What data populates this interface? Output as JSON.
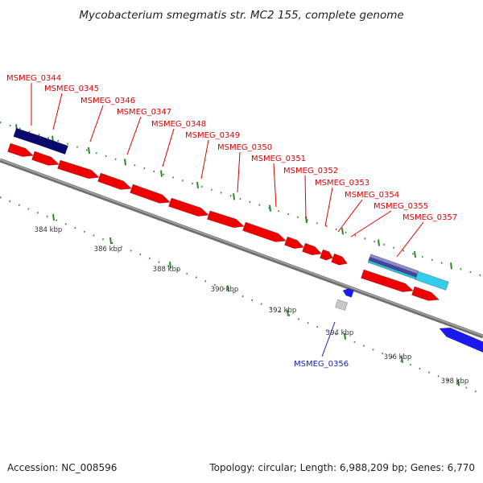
{
  "title": "Mycobacterium smegmatis str. MC2 155, complete genome",
  "footer": {
    "accession": "Accession: NC_008596",
    "summary": "Topology: circular; Length: 6,988,209 bp; Genes: 6,770"
  },
  "colors": {
    "forward_gene": "#ee0000",
    "reverse_gene": "#1a1aee",
    "forward_label": "#dd0000",
    "reverse_label": "#1a1ab8",
    "navy_feature": "#0a0a6e",
    "light_blue_feature": "#33ccee",
    "grey_feature": "#c8c8c8",
    "backbone": "#888888",
    "tick_marks": "#2a8a2a"
  },
  "scale_labels": [
    "384 kbp",
    "386 kbp",
    "388 kbp",
    "390 kbp",
    "392 kbp",
    "394 kbp",
    "396 kbp",
    "398 kbp"
  ],
  "forward_genes": [
    "MSMEG_0344",
    "MSMEG_0345",
    "MSMEG_0346",
    "MSMEG_0347",
    "MSMEG_0348",
    "MSMEG_0349",
    "MSMEG_0350",
    "MSMEG_0351",
    "MSMEG_0352",
    "MSMEG_0353",
    "MSMEG_0354",
    "MSMEG_0355",
    "MSMEG_0357"
  ],
  "reverse_genes": [
    "MSMEG_0356"
  ]
}
